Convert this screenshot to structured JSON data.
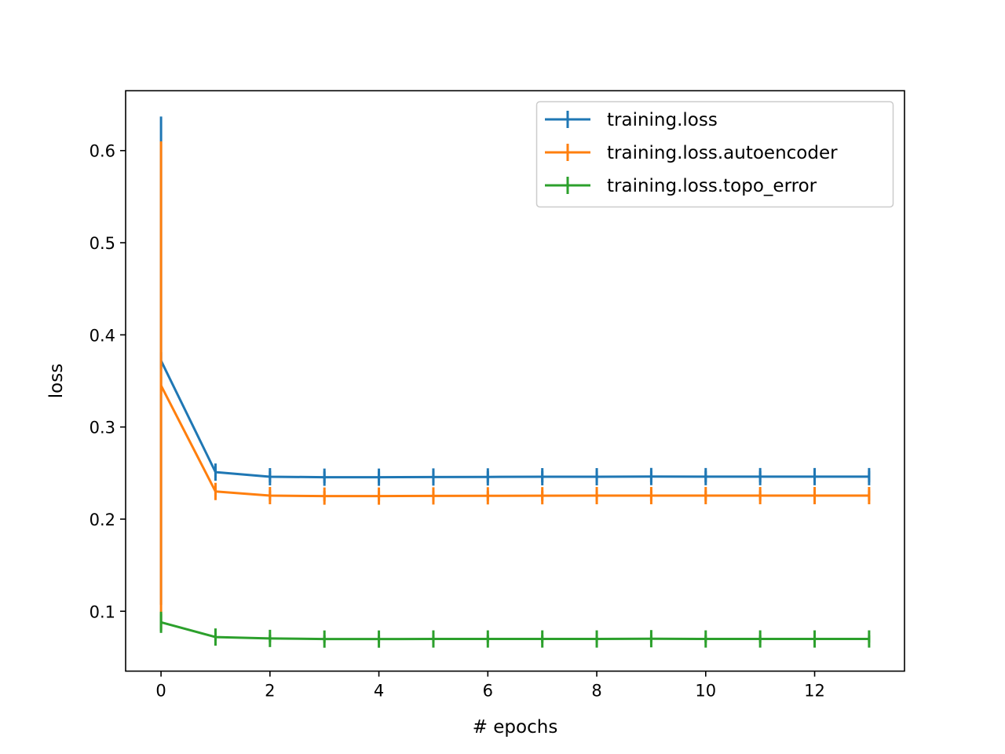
{
  "chart_data": {
    "type": "line",
    "title": "",
    "xlabel": "# epochs",
    "ylabel": "loss",
    "xlim": [
      -0.65,
      13.65
    ],
    "ylim": [
      0.035,
      0.665
    ],
    "xticks": [
      0,
      2,
      4,
      6,
      8,
      10,
      12
    ],
    "xtick_labels": [
      "0",
      "2",
      "4",
      "6",
      "8",
      "10",
      "12"
    ],
    "yticks": [
      0.1,
      0.2,
      0.3,
      0.4,
      0.5,
      0.6
    ],
    "ytick_labels": [
      "0.1",
      "0.2",
      "0.3",
      "0.4",
      "0.5",
      "0.6"
    ],
    "grid": false,
    "legend_position": "upper right",
    "x": [
      0,
      1,
      2,
      3,
      4,
      5,
      6,
      7,
      8,
      9,
      10,
      11,
      12,
      13
    ],
    "series": [
      {
        "name": "training.loss",
        "color": "#1f77b4",
        "values": [
          0.372,
          0.251,
          0.246,
          0.2455,
          0.2455,
          0.2457,
          0.2458,
          0.246,
          0.246,
          0.2462,
          0.2461,
          0.2461,
          0.2461,
          0.2461
        ],
        "errors": [
          0.265,
          0.006,
          0.0062,
          0.0062,
          0.0062,
          0.0062,
          0.0062,
          0.0062,
          0.0062,
          0.0062,
          0.0062,
          0.0062,
          0.0062,
          0.0062
        ]
      },
      {
        "name": "training.loss.autoencoder",
        "color": "#ff7f0e",
        "values": [
          0.345,
          0.23,
          0.2255,
          0.225,
          0.225,
          0.2252,
          0.2253,
          0.2254,
          0.2255,
          0.2255,
          0.2255,
          0.2255,
          0.2255,
          0.2255
        ],
        "errors": [
          0.265,
          0.0055,
          0.0055,
          0.0055,
          0.0055,
          0.0055,
          0.0055,
          0.0055,
          0.0055,
          0.0055,
          0.0055,
          0.0055,
          0.0055,
          0.0055
        ]
      },
      {
        "name": "training.loss.topo_error",
        "color": "#2ca02c",
        "values": [
          0.088,
          0.072,
          0.0705,
          0.0698,
          0.0698,
          0.0699,
          0.0699,
          0.0699,
          0.0699,
          0.0702,
          0.0699,
          0.0699,
          0.0699,
          0.0699
        ],
        "errors": [
          0.0115,
          0.004,
          0.004,
          0.004,
          0.004,
          0.004,
          0.004,
          0.004,
          0.004,
          0.004,
          0.004,
          0.004,
          0.004,
          0.004
        ]
      }
    ]
  }
}
